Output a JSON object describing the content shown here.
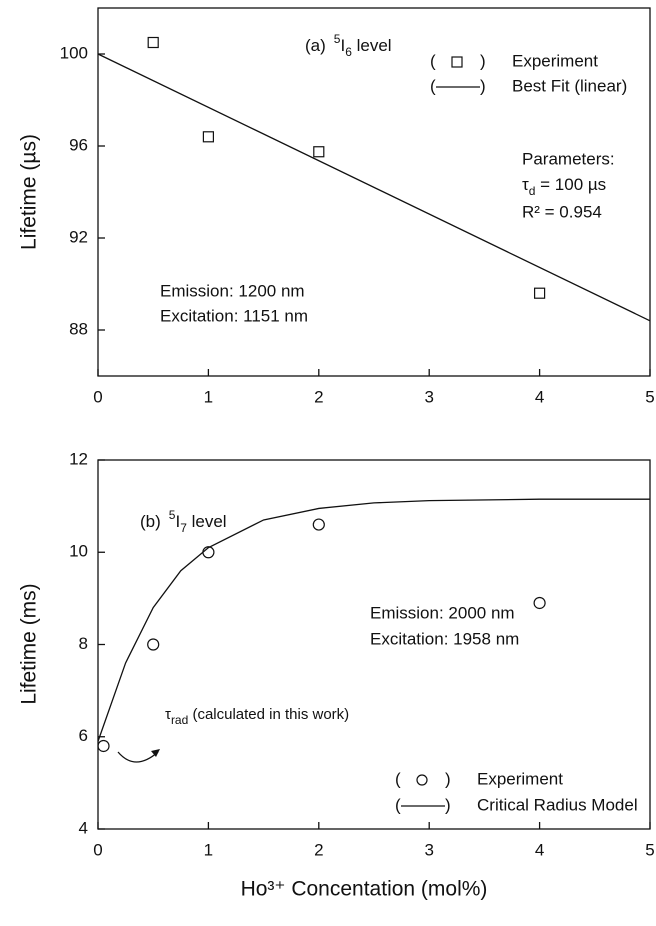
{
  "chart_data": [
    {
      "type": "scatter",
      "panel_label": {
        "prefix": "(a)",
        "sup": "5",
        "base": "I",
        "sub": "6",
        "after": " level"
      },
      "ylabel": "Lifetime (µs)",
      "xlim": [
        0,
        5
      ],
      "xticks": [
        0,
        1,
        2,
        3,
        4,
        5
      ],
      "ylim": [
        86,
        102
      ],
      "yticks": [
        88,
        92,
        96,
        100
      ],
      "series": [
        {
          "name": "Experiment",
          "mark": "square",
          "color": "#111111",
          "x": [
            0.5,
            1,
            2,
            4
          ],
          "values": [
            100.5,
            96.4,
            95.75,
            89.6
          ]
        },
        {
          "name": "Best Fit (linear)",
          "mark": "line",
          "color": "#111111",
          "x": [
            0,
            5
          ],
          "values": [
            100,
            88.4
          ]
        }
      ],
      "legend_brackets": [
        "(",
        ")"
      ],
      "parameters_title": "Parameters:",
      "parameter_tau": {
        "base": "τ",
        "sub": "d",
        "after": " = 100 µs"
      },
      "parameter_r2": "R² = 0.954",
      "emission": "Emission: 1200 nm",
      "excitation": "Excitation: 1151 nm"
    },
    {
      "type": "scatter",
      "panel_label": {
        "prefix": "(b)",
        "sup": "5",
        "base": "I",
        "sub": "7",
        "after": " level"
      },
      "ylabel": "Lifetime (ms)",
      "xlabel": "Ho³⁺ Concentation (mol%)",
      "xlim": [
        0,
        5
      ],
      "xticks": [
        0,
        1,
        2,
        3,
        4,
        5
      ],
      "ylim": [
        4,
        12
      ],
      "yticks": [
        4,
        6,
        8,
        10,
        12
      ],
      "series": [
        {
          "name": "Experiment",
          "mark": "circle",
          "color": "#111111",
          "x": [
            0.05,
            0.5,
            1,
            2,
            4
          ],
          "values": [
            5.8,
            8.0,
            10.0,
            10.6,
            8.9
          ]
        },
        {
          "name": "Critical Radius Model",
          "mark": "line",
          "color": "#111111",
          "x": [
            0,
            0.25,
            0.5,
            0.75,
            1,
            1.5,
            2,
            2.5,
            3,
            4,
            5
          ],
          "values": [
            5.9,
            7.6,
            8.8,
            9.6,
            10.1,
            10.7,
            10.95,
            11.07,
            11.12,
            11.15,
            11.15
          ]
        }
      ],
      "legend_brackets": [
        "(",
        ")"
      ],
      "annotation_tau": {
        "base": "τ",
        "sub": "rad",
        "after": " (calculated in this work)"
      },
      "emission": "Emission: 2000 nm",
      "excitation": "Excitation: 1958 nm"
    }
  ]
}
